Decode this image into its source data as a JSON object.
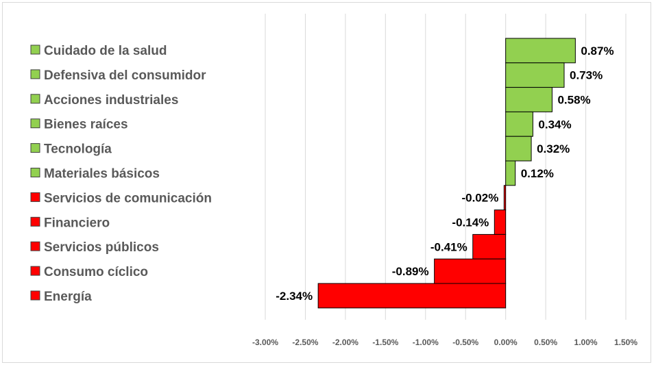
{
  "chart_data": {
    "type": "bar",
    "orientation": "horizontal",
    "categories": [
      "Cuidado de la salud",
      "Defensiva del consumidor",
      "Acciones industriales",
      "Bienes raíces",
      "Tecnología",
      "Materiales básicos",
      "Servicios de comunicación",
      "Financiero",
      "Servicios públicos",
      "Consumo cíclico",
      "Energía"
    ],
    "values": [
      0.87,
      0.73,
      0.58,
      0.34,
      0.32,
      0.12,
      -0.02,
      -0.14,
      -0.41,
      -0.89,
      -2.34
    ],
    "value_labels": [
      "0.87%",
      "0.73%",
      "0.58%",
      "0.34%",
      "0.32%",
      "0.12%",
      "-0.02%",
      "-0.14%",
      "-0.41%",
      "-0.89%",
      "-2.34%"
    ],
    "xlim": [
      -3.0,
      1.5
    ],
    "xticks": [
      -3.0,
      -2.5,
      -2.0,
      -1.5,
      -1.0,
      -0.5,
      0.0,
      0.5,
      1.0,
      1.5
    ],
    "xtick_labels": [
      "-3.00%",
      "-2.50%",
      "-2.00%",
      "-1.50%",
      "-1.00%",
      "-0.50%",
      "0.00%",
      "0.50%",
      "1.00%",
      "1.50%"
    ],
    "grid": "vertical",
    "legend": "left",
    "colors": {
      "positive": "#92d050",
      "negative": "#ff0000",
      "grid": "#d9d9d9",
      "outline": "#000000"
    },
    "title": "",
    "xlabel": "",
    "ylabel": ""
  }
}
